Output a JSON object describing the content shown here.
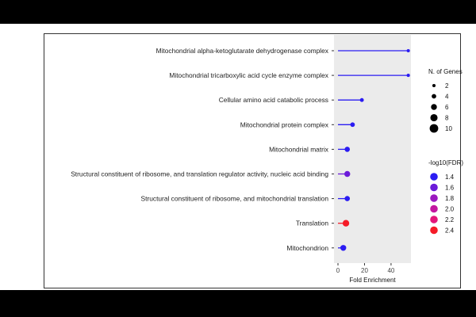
{
  "chart_data": {
    "type": "lollipop",
    "xlabel": "Fold Enrichment",
    "xlim": [
      -3,
      55
    ],
    "xticks": [
      "0",
      "20",
      "40"
    ],
    "xtick_values": [
      0,
      20,
      40
    ],
    "grid": false,
    "categories": [
      "Mitochondrial alpha-ketoglutarate dehydrogenase complex",
      "Mitochondrial tricarboxylic acid cycle enzyme complex",
      "Cellular amino acid catabolic process",
      "Mitochondrial protein complex",
      "Mitochondrial matrix",
      "Structural constituent of ribosome, and translation regulator activity, nucleic acid binding",
      "Structural constituent of ribosome, and mitochondrial translation",
      "Translation",
      "Mitochondrion"
    ],
    "fold_enrichment": [
      53,
      53,
      18,
      11,
      7,
      7,
      7,
      6,
      4
    ],
    "n_genes": [
      2,
      2,
      3,
      4,
      5,
      6,
      5,
      7,
      6
    ],
    "neg_log10_fdr": [
      1.4,
      1.4,
      1.4,
      1.4,
      1.4,
      1.6,
      1.4,
      2.4,
      1.5
    ],
    "size_legend": {
      "title": "N. of Genes",
      "labels": [
        "2",
        "4",
        "6",
        "8",
        "10"
      ],
      "values": [
        2,
        4,
        6,
        8,
        10
      ]
    },
    "color_legend": {
      "title": "-log10(FDR)",
      "labels": [
        "1.4",
        "1.6",
        "1.8",
        "2.0",
        "2.2",
        "2.4"
      ],
      "values": [
        1.4,
        1.6,
        1.8,
        2.0,
        2.2,
        2.4
      ],
      "colors": [
        "#2b1cf2",
        "#6b1ad9",
        "#9a19bf",
        "#c317a0",
        "#e3167a",
        "#f51b27"
      ]
    },
    "legend_position": "right",
    "panel_background": "#ebebeb"
  }
}
